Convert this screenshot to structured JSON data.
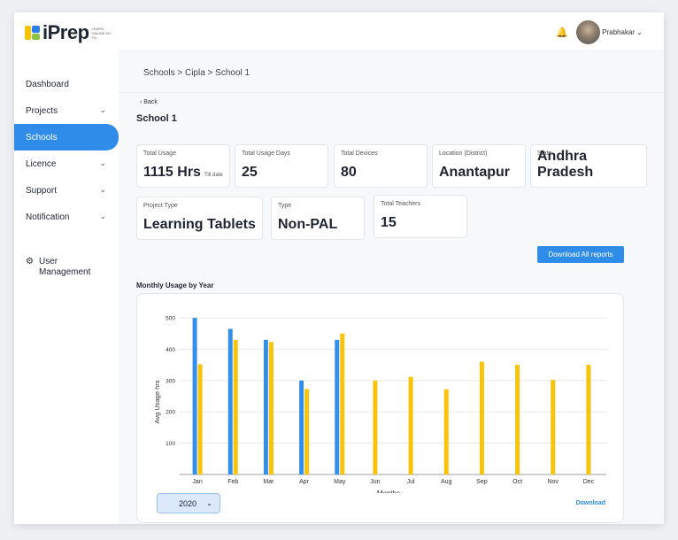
{
  "logo": {
    "text": "iPrep",
    "tagline": "LEARN ONLINE MY FD"
  },
  "sidebar": {
    "items": [
      {
        "label": "Dashboard",
        "has_chevron": false,
        "active": false
      },
      {
        "label": "Projects",
        "has_chevron": true,
        "active": false
      },
      {
        "label": "Schools",
        "has_chevron": false,
        "active": true
      },
      {
        "label": "Licence",
        "has_chevron": true,
        "active": false
      },
      {
        "label": "Support",
        "has_chevron": true,
        "active": false
      },
      {
        "label": "Notification",
        "has_chevron": true,
        "active": false
      }
    ],
    "user_management": "User Management"
  },
  "header": {
    "username": "Prabhakar"
  },
  "breadcrumb": "Schools > Cipla > School 1",
  "back_label": "Back",
  "page_title": "School 1",
  "stats": {
    "total_usage": {
      "label": "Total Usage",
      "value": "1115 Hrs",
      "suffix": "Till date"
    },
    "usage_days": {
      "label": "Total Usage Days",
      "value": "25"
    },
    "devices": {
      "label": "Total Devices",
      "value": "80"
    },
    "location": {
      "label": "Location (District)",
      "value": "Anantapur"
    },
    "state": {
      "label": "State",
      "value": "Andhra Pradesh"
    },
    "project_type": {
      "label": "Project Type",
      "value": "Learning Tablets"
    },
    "type": {
      "label": "Type",
      "value": "Non-PAL"
    },
    "teachers": {
      "label": "Total Teachers",
      "value": "15"
    }
  },
  "download_all_label": "Download All reports",
  "chart_section_title": "Monthly Usage by Year",
  "year_selected": "2020",
  "download_label": "Download",
  "colors": {
    "accent": "#2f8ce8",
    "series_blue": "#3390ea",
    "series_yellow": "#f8c40a"
  },
  "chart_data": {
    "type": "bar",
    "categories": [
      "Jan",
      "Feb",
      "Mar",
      "Apr",
      "May",
      "Jun",
      "Jul",
      "Aug",
      "Sep",
      "Oct",
      "Nov",
      "Dec"
    ],
    "series": [
      {
        "color": "#3390ea",
        "values": [
          500,
          465,
          430,
          300,
          430,
          null,
          null,
          null,
          null,
          null,
          null,
          null
        ]
      },
      {
        "color": "#f8c40a",
        "values": [
          352,
          430,
          423,
          273,
          450,
          300,
          312,
          272,
          360,
          350,
          302,
          350
        ]
      }
    ],
    "yticks": [
      100,
      200,
      300,
      400,
      500
    ],
    "ylim": [
      0,
      520
    ],
    "xlabel": "Months",
    "ylabel": "Avg Usage hrs",
    "grid": true
  }
}
